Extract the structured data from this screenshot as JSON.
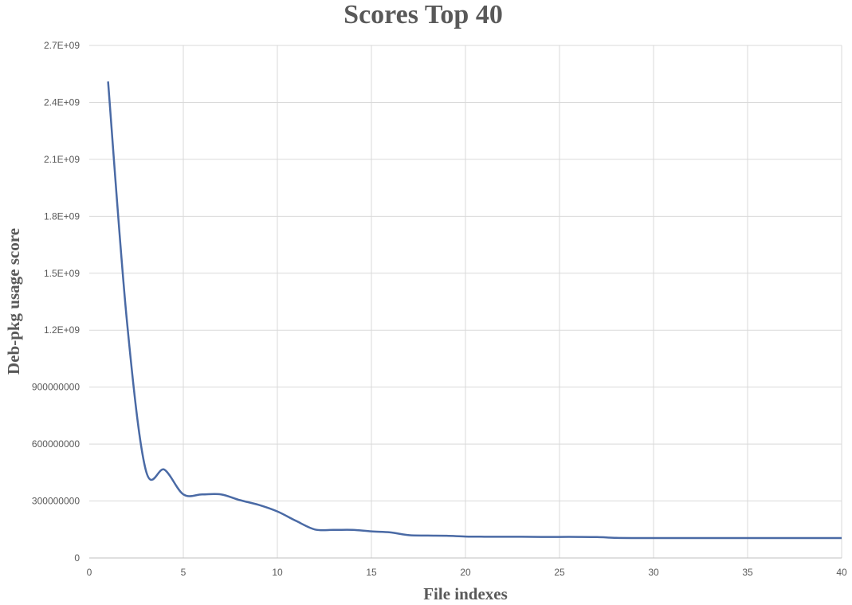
{
  "chart_data": {
    "type": "line",
    "title": "Scores Top 40",
    "xlabel": "File indexes",
    "ylabel": "Deb-pkg usage score",
    "xlim": [
      0,
      40
    ],
    "ylim": [
      0,
      2700000000
    ],
    "x_ticks": [
      0,
      5,
      10,
      15,
      20,
      25,
      30,
      35,
      40
    ],
    "x_tick_labels": [
      "0",
      "5",
      "10",
      "15",
      "20",
      "25",
      "30",
      "35",
      "40"
    ],
    "y_ticks": [
      0,
      300000000,
      600000000,
      900000000,
      1200000000,
      1500000000,
      1800000000,
      2100000000,
      2400000000,
      2700000000
    ],
    "y_tick_labels": [
      "0",
      "300000000",
      "600000000",
      "900000000",
      "1.2E+09",
      "1.5E+09",
      "1.8E+09",
      "2.1E+09",
      "2.4E+09",
      "2.7E+09"
    ],
    "grid": true,
    "line_color": "#4a6aa5",
    "series": [
      {
        "x": [
          1,
          2,
          3,
          4,
          5,
          6,
          7,
          8,
          9,
          10,
          11,
          12,
          13,
          14,
          15,
          16,
          17,
          18,
          19,
          20,
          21,
          22,
          23,
          24,
          25,
          26,
          27,
          28,
          29,
          30,
          31,
          32,
          33,
          34,
          35,
          36,
          37,
          38,
          39,
          40
        ],
        "values": [
          2510000000,
          1250000000,
          465000000,
          465000000,
          335000000,
          335000000,
          335000000,
          305000000,
          280000000,
          245000000,
          195000000,
          150000000,
          148000000,
          148000000,
          140000000,
          135000000,
          120000000,
          118000000,
          117000000,
          113000000,
          112000000,
          112000000,
          112000000,
          111000000,
          111000000,
          111000000,
          110000000,
          106000000,
          105000000,
          105000000,
          105000000,
          105000000,
          105000000,
          105000000,
          105000000,
          105000000,
          105000000,
          105000000,
          105000000,
          105000000
        ]
      }
    ]
  }
}
